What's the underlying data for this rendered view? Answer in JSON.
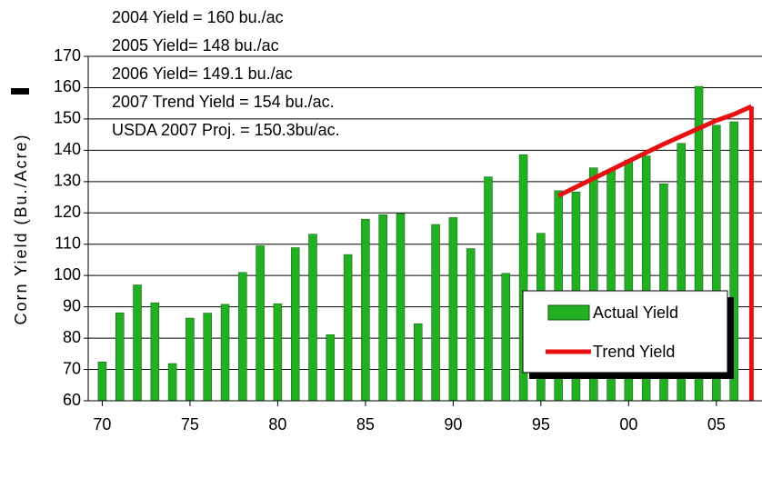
{
  "chart_data": {
    "type": "bar",
    "annotations": [
      "2004 Yield = 160 bu./ac",
      "2005 Yield= 148 bu./ac",
      "2006 Yield= 149.1 bu./ac",
      "2007 Trend Yield = 154 bu./ac.",
      "USDA 2007 Proj. = 150.3bu/ac."
    ],
    "y_label": "Corn Yield  (Bu./Acre)",
    "x": [
      1970,
      1971,
      1972,
      1973,
      1974,
      1975,
      1976,
      1977,
      1978,
      1979,
      1980,
      1981,
      1982,
      1983,
      1984,
      1985,
      1986,
      1987,
      1988,
      1989,
      1990,
      1991,
      1992,
      1993,
      1994,
      1995,
      1996,
      1997,
      1998,
      1999,
      2000,
      2001,
      2002,
      2003,
      2004,
      2005,
      2006
    ],
    "series": [
      {
        "name": "Actual Yield",
        "color": "#22b022",
        "values": [
          72.4,
          88.1,
          97,
          91.3,
          71.9,
          86.4,
          88,
          90.8,
          101,
          109.5,
          91,
          108.9,
          113.2,
          81.1,
          106.7,
          118,
          119.4,
          119.8,
          84.6,
          116.3,
          118.5,
          108.6,
          131.5,
          100.7,
          138.6,
          113.5,
          127.1,
          126.7,
          134.4,
          133.8,
          136.9,
          138.2,
          129.3,
          142.2,
          160.4,
          148,
          149.1
        ]
      },
      {
        "name": "Trend Yield",
        "color": "#e81010",
        "type": "line",
        "x": [
          1996,
          1998,
          2000,
          2002,
          2004,
          2005,
          2006,
          2007
        ],
        "values": [
          125.5,
          131,
          136.5,
          142,
          147,
          149.5,
          151.5,
          154
        ]
      }
    ],
    "xlim": [
      1969.2,
      2007.6
    ],
    "xticks": [
      {
        "value": 1970,
        "label": "70"
      },
      {
        "value": 1975,
        "label": "75"
      },
      {
        "value": 1980,
        "label": "80"
      },
      {
        "value": 1985,
        "label": "85"
      },
      {
        "value": 1990,
        "label": "90"
      },
      {
        "value": 1995,
        "label": "95"
      },
      {
        "value": 2000,
        "label": "00"
      },
      {
        "value": 2005,
        "label": "05"
      }
    ],
    "ylim": [
      60,
      170
    ],
    "yticks": [
      60,
      70,
      80,
      90,
      100,
      110,
      120,
      130,
      140,
      150,
      160,
      170
    ],
    "grid": true
  }
}
